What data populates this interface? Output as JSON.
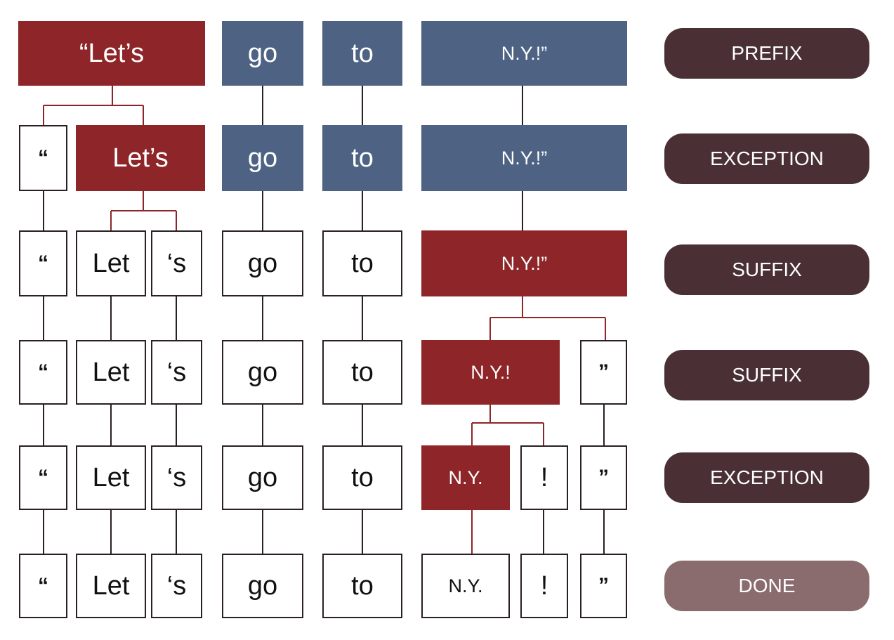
{
  "tokens": {
    "full_quote_lets": "“Let’s",
    "lets": "Let’s",
    "open_quote": "“",
    "let": "Let",
    "apostrophe_s": "‘s",
    "go": "go",
    "to": "to",
    "ny_bang_quote": "N.Y.!”",
    "ny_bang": "N.Y.!",
    "ny": "N.Y.",
    "bang": "!",
    "close_quote": "”"
  },
  "stages": [
    "PREFIX",
    "EXCEPTION",
    "SUFFIX",
    "SUFFIX",
    "EXCEPTION",
    "DONE"
  ],
  "colors": {
    "active": "#8e2528",
    "pending": "#4e6384",
    "stage": "#4a3034",
    "done": "#8a6c6e",
    "connector_active": "#8e2528",
    "connector": "#2a1f22"
  }
}
